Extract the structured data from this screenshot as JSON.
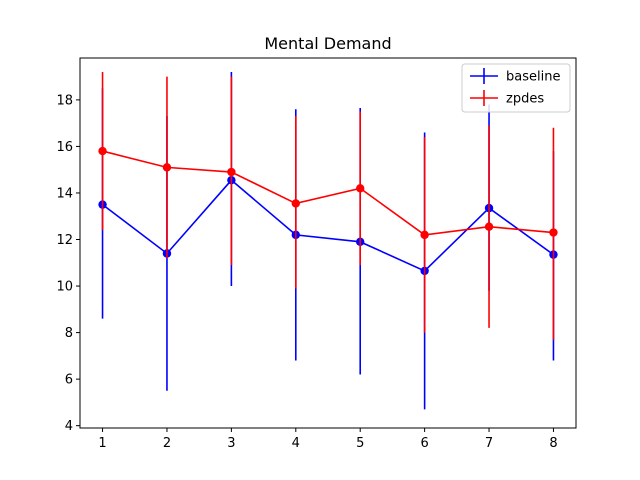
{
  "chart_data": {
    "type": "line",
    "title": "Mental Demand",
    "xlabel": "",
    "ylabel": "",
    "x": [
      1,
      2,
      3,
      4,
      5,
      6,
      7,
      8
    ],
    "xlim": [
      0.65,
      8.35
    ],
    "ylim": [
      3.9,
      19.8
    ],
    "xticks": [
      1,
      2,
      3,
      4,
      5,
      6,
      7,
      8
    ],
    "yticks": [
      4,
      6,
      8,
      10,
      12,
      14,
      16,
      18
    ],
    "grid": false,
    "legend_position": "top-right",
    "series": [
      {
        "name": "baseline",
        "color": "#0000ff",
        "values": [
          13.5,
          11.4,
          14.55,
          12.2,
          11.9,
          10.65,
          13.35,
          11.35
        ],
        "err_low": [
          8.6,
          5.5,
          10.0,
          6.8,
          6.2,
          4.7,
          9.8,
          6.8
        ],
        "err_high": [
          18.5,
          17.3,
          19.2,
          17.6,
          17.65,
          16.6,
          17.8,
          15.8
        ]
      },
      {
        "name": "zpdes",
        "color": "#ff0000",
        "values": [
          15.8,
          15.1,
          14.9,
          13.55,
          14.2,
          12.2,
          12.55,
          12.3
        ],
        "err_low": [
          12.4,
          11.2,
          10.9,
          9.9,
          10.9,
          8.0,
          8.2,
          7.7
        ],
        "err_high": [
          19.2,
          19.0,
          19.0,
          17.3,
          17.5,
          16.4,
          16.9,
          16.8
        ]
      }
    ]
  }
}
